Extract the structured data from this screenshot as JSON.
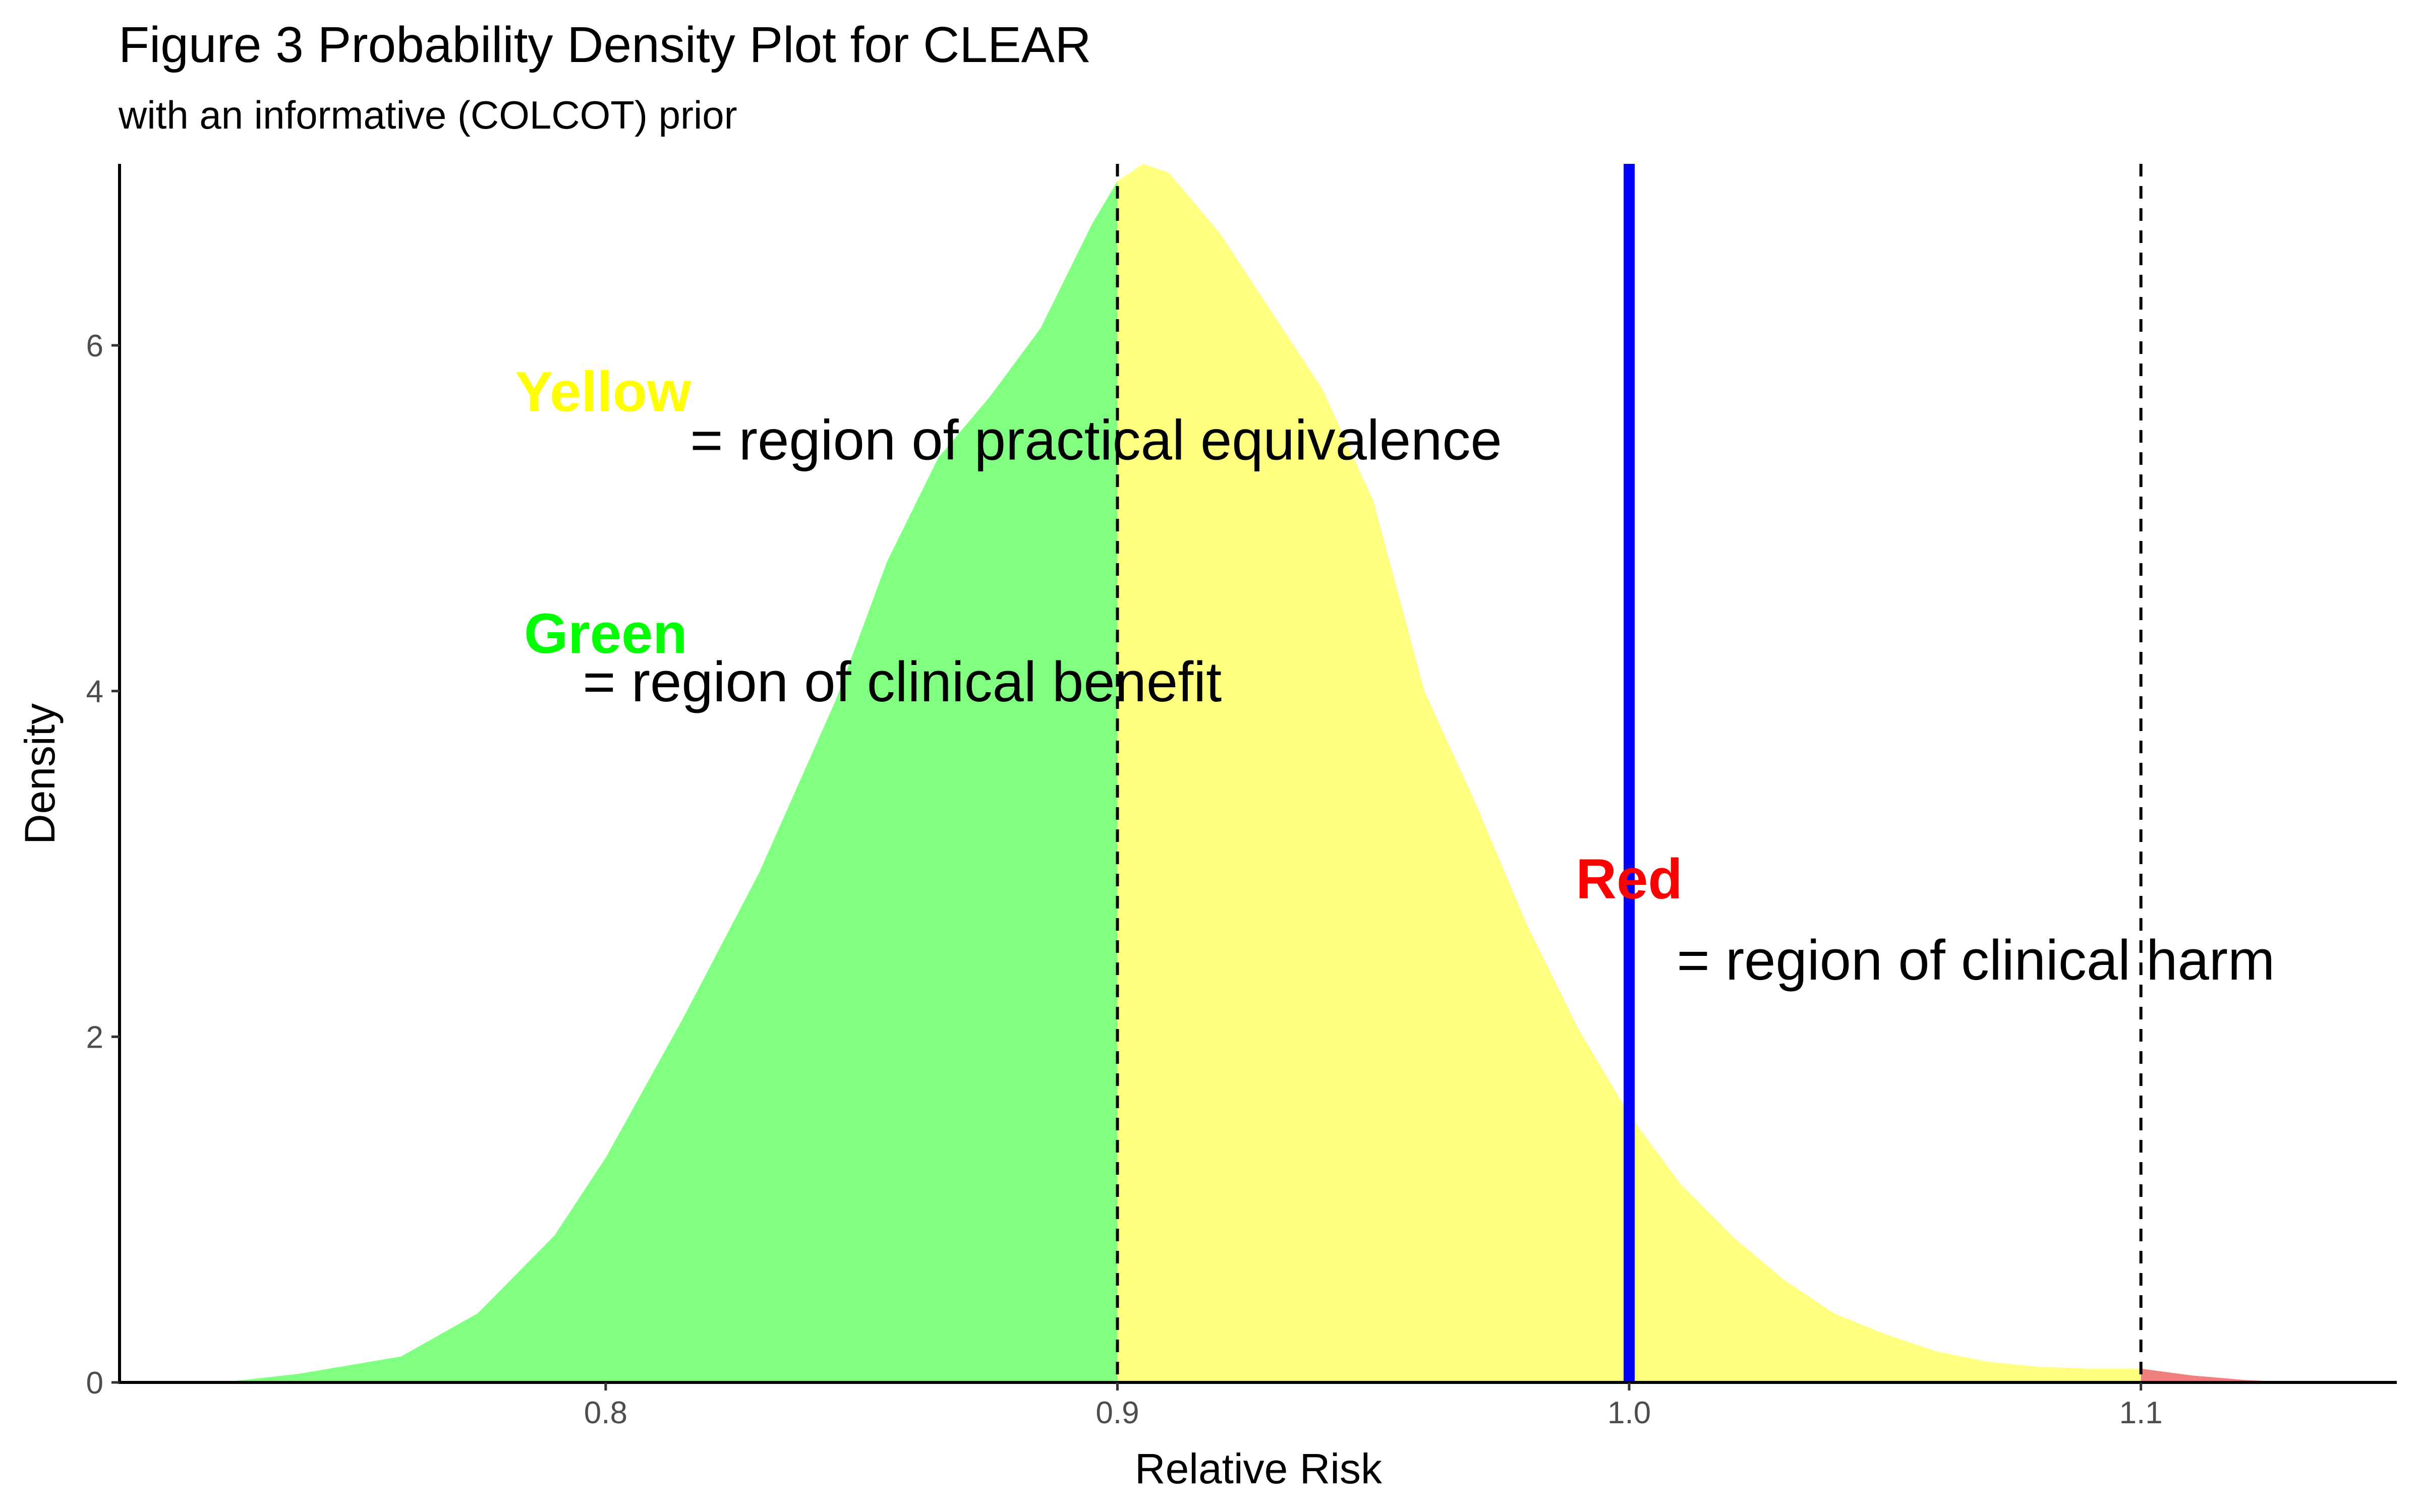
{
  "chart_data": {
    "type": "area",
    "title": "Figure 3 Probability Density Plot for CLEAR",
    "subtitle": "with an informative (COLCOT) prior",
    "xlabel": "Relative Risk",
    "ylabel": "Density",
    "xlim": [
      0.705,
      1.15
    ],
    "ylim": [
      0,
      7.05
    ],
    "x_ticks": [
      0.8,
      0.9,
      1.0,
      1.1
    ],
    "x_tick_labels": [
      "0.8",
      "0.9",
      "1.0",
      "1.1"
    ],
    "y_ticks": [
      0,
      2,
      4,
      6
    ],
    "y_tick_labels": [
      "0",
      "2",
      "4",
      "6"
    ],
    "grid": false,
    "legend": "none",
    "density": {
      "x": [
        0.725,
        0.74,
        0.76,
        0.775,
        0.79,
        0.8,
        0.815,
        0.83,
        0.845,
        0.855,
        0.865,
        0.875,
        0.885,
        0.895,
        0.9,
        0.905,
        0.91,
        0.92,
        0.93,
        0.94,
        0.95,
        0.96,
        0.97,
        0.98,
        0.99,
        1.0,
        1.01,
        1.02,
        1.03,
        1.04,
        1.05,
        1.06,
        1.07,
        1.08,
        1.09,
        1.1,
        1.11,
        1.12,
        1.13
      ],
      "y": [
        0.0,
        0.05,
        0.15,
        0.4,
        0.85,
        1.3,
        2.1,
        2.95,
        3.95,
        4.75,
        5.35,
        5.7,
        6.1,
        6.7,
        6.95,
        7.05,
        7.0,
        6.65,
        6.2,
        5.75,
        5.1,
        4.0,
        3.35,
        2.65,
        2.05,
        1.55,
        1.15,
        0.85,
        0.6,
        0.4,
        0.28,
        0.18,
        0.12,
        0.09,
        0.08,
        0.08,
        0.04,
        0.015,
        0.0
      ]
    },
    "regions": [
      {
        "name": "benefit",
        "from": 0.725,
        "to": 0.9,
        "color": "#80ff80"
      },
      {
        "name": "equivalence",
        "from": 0.9,
        "to": 1.1,
        "color": "#ffff80"
      },
      {
        "name": "harm",
        "from": 1.1,
        "to": 1.13,
        "color": "#f08080"
      }
    ],
    "reference_lines": [
      {
        "x": 0.9,
        "style": "dashed",
        "color": "#000000"
      },
      {
        "x": 1.0,
        "style": "solid",
        "color": "#0000ff"
      },
      {
        "x": 1.1,
        "style": "dashed",
        "color": "#000000"
      }
    ],
    "annotations": [
      {
        "label": "Yellow",
        "color": "#ffff00",
        "x": 0.7995,
        "y": 5.62,
        "text": "= region of practical equivalence",
        "text_x": 0.8165,
        "text_y": 5.34
      },
      {
        "label": "Green",
        "color": "#00ff00",
        "x": 0.8,
        "y": 4.22,
        "text": "= region of clinical benefit",
        "text_x": 0.7955,
        "text_y": 3.94
      },
      {
        "label": "Red",
        "color": "#ff0000",
        "x": 1.0,
        "y": 2.8,
        "text": "= region of clinical harm",
        "text_x": 1.0093,
        "text_y": 2.33
      }
    ]
  }
}
